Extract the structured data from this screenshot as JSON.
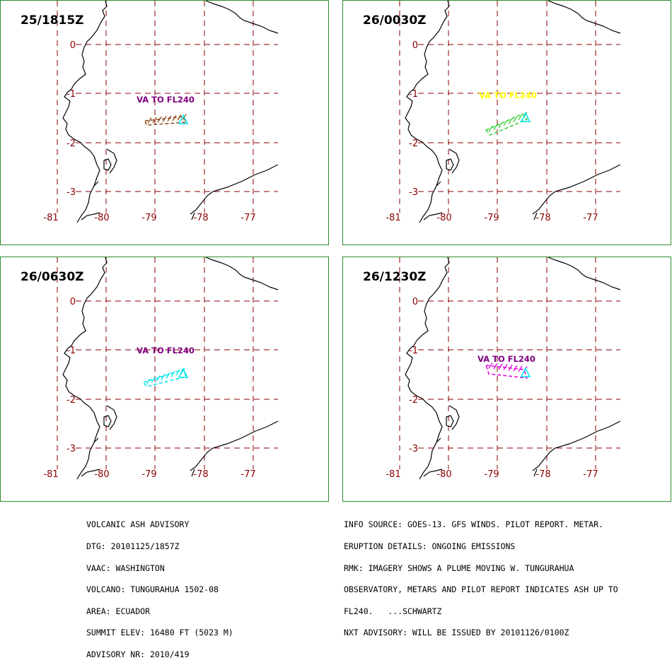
{
  "panels": [
    {
      "time": "25/1815Z",
      "label": "VA TO FL240",
      "label_color": "#800080",
      "plume_color": "#8b4513"
    },
    {
      "time": "26/0030Z",
      "label": "VA  TO  FL240",
      "label_color": "#ffff00",
      "plume_color": "#32cd32"
    },
    {
      "time": "26/0630Z",
      "label": "VA TO FL240",
      "label_color": "#800080",
      "plume_color": "#00e5ee"
    },
    {
      "time": "26/1230Z",
      "label": "VA TO FL240",
      "label_color": "#800080",
      "plume_color": "#e000e0"
    }
  ],
  "map": {
    "lat_labels": [
      "0",
      "-1",
      "-2",
      "-3"
    ],
    "lon_labels": [
      "-81",
      "-80",
      "-79",
      "-78",
      "-77"
    ],
    "grid_color": "#8b0000",
    "label_color": "#8b0000",
    "volcano_color": "#00e5ee",
    "frame_color": "#2e8b2e"
  },
  "advisory_left": [
    "VOLCANIC ASH ADVISORY",
    "DTG: 20101125/1857Z",
    "VAAC: WASHINGTON",
    "VOLCANO: TUNGURAHUA 1502-08",
    "AREA: ECUADOR",
    "SUMMIT ELEV: 16480 FT (5023 M)",
    "ADVISORY NR: 2010/419"
  ],
  "advisory_right": [
    "INFO SOURCE: GOES-13. GFS WINDS. PILOT REPORT. METAR.",
    "ERUPTION DETAILS: ONGOING EMISSIONS",
    "RMK: IMAGERY SHOWS A PLUME MOVING W. TUNGURAHUA",
    "OBSERVATORY, METARS AND PILOT REPORT INDICATES ASH UP TO",
    "FL240.   ...SCHWARTZ",
    "NXT ADVISORY: WILL BE ISSUED BY 20101126/0100Z"
  ]
}
